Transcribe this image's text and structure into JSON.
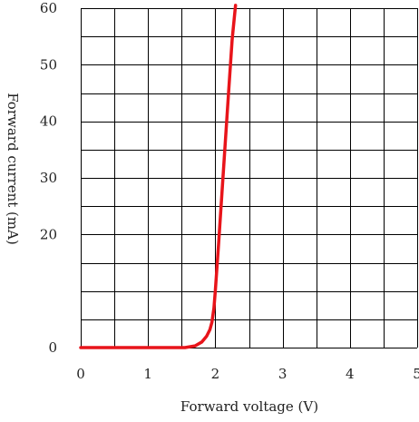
{
  "chart_data": {
    "type": "line",
    "title": "",
    "xlabel": "Forward voltage (V)",
    "ylabel": "Forward current (mA)",
    "xlim": [
      0,
      5
    ],
    "ylim": [
      0,
      60
    ],
    "x_ticks": [
      0,
      1,
      2,
      3,
      4,
      5
    ],
    "y_ticks": [
      0,
      10,
      20,
      30,
      40,
      50,
      60
    ],
    "x_tick_labels": [
      "0",
      "1",
      "2",
      "3",
      "4",
      "5"
    ],
    "y_tick_labels": [
      "0",
      "",
      "20",
      "30",
      "40",
      "50",
      "60"
    ],
    "grid": true,
    "grid_x_step": 0.5,
    "grid_y_step": 5,
    "legend": "none",
    "series": [
      {
        "color": "#e8141a",
        "x": [
          0,
          1.0,
          1.55,
          1.7,
          1.8,
          1.87,
          1.92,
          1.95,
          1.98,
          2.0,
          2.05,
          2.1,
          2.15,
          2.2,
          2.25,
          2.3
        ],
        "y": [
          0,
          0,
          0,
          0.3,
          1.0,
          2.0,
          3.2,
          4.5,
          7.0,
          10.0,
          18.5,
          27.5,
          36.5,
          45.5,
          54.5,
          60.5
        ]
      }
    ]
  }
}
